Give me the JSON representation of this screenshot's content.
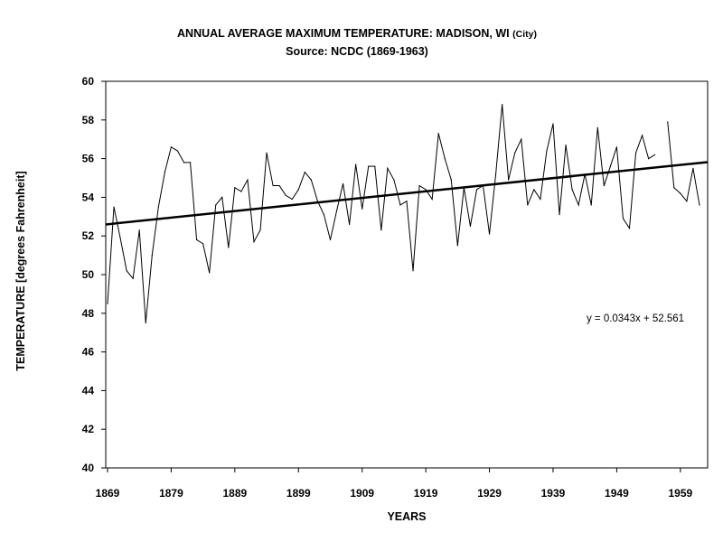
{
  "chart_data": {
    "type": "line",
    "title": "ANNUAL AVERAGE MAXIMUM TEMPERATURE: MADISON, WI",
    "title_suffix": "(City)",
    "subtitle": "Source: NCDC (1869-1963)",
    "xlabel": "YEARS",
    "ylabel": "TEMPERATURE [degrees Fahrenheit]",
    "xlim": [
      1869,
      1963
    ],
    "ylim": [
      40,
      60
    ],
    "yticks": [
      "40",
      "42",
      "44",
      "46",
      "48",
      "50",
      "52",
      "54",
      "56",
      "58",
      "60"
    ],
    "xticks": [
      "1869",
      "1879",
      "1889",
      "1899",
      "1909",
      "1919",
      "1929",
      "1939",
      "1949",
      "1959"
    ],
    "grid": false,
    "legend": "none",
    "series": [
      {
        "color": "#000000",
        "start_year": 1869,
        "values": [
          48.5,
          53.5,
          51.9,
          50.2,
          49.8,
          52.3,
          47.5,
          51.0,
          53.5,
          55.3,
          56.6,
          56.4,
          55.8,
          55.8,
          51.8,
          51.6,
          50.1,
          53.6,
          54.0,
          51.4,
          54.5,
          54.3,
          54.9,
          51.7,
          52.3,
          56.3,
          54.6,
          54.6,
          54.1,
          53.9,
          54.4,
          55.3,
          54.9,
          53.8,
          53.1,
          51.8,
          53.3,
          54.7,
          52.6,
          55.7,
          53.4,
          55.6,
          55.6,
          52.3,
          55.5,
          54.9,
          53.6,
          53.8,
          50.2,
          54.6,
          54.4,
          53.9,
          57.3,
          56.0,
          54.9,
          51.5,
          54.5,
          52.5,
          54.4,
          54.6,
          52.1,
          55.2,
          58.8,
          54.9,
          56.3,
          57.0,
          53.6,
          54.4,
          53.9,
          56.4,
          57.8,
          53.1,
          56.7,
          54.4,
          53.6,
          55.2,
          53.6,
          57.6,
          54.6,
          55.6,
          56.6,
          52.9,
          52.4,
          56.3,
          57.2,
          56.0,
          56.2,
          null,
          57.9,
          54.5,
          54.2,
          53.8,
          55.5,
          53.6
        ]
      }
    ],
    "trendline": {
      "equation": "y = 0.0343x + 52.561",
      "slope": 0.0343,
      "intercept": 52.561,
      "x_index_range": [
        1,
        95
      ],
      "color": "#000000"
    }
  }
}
